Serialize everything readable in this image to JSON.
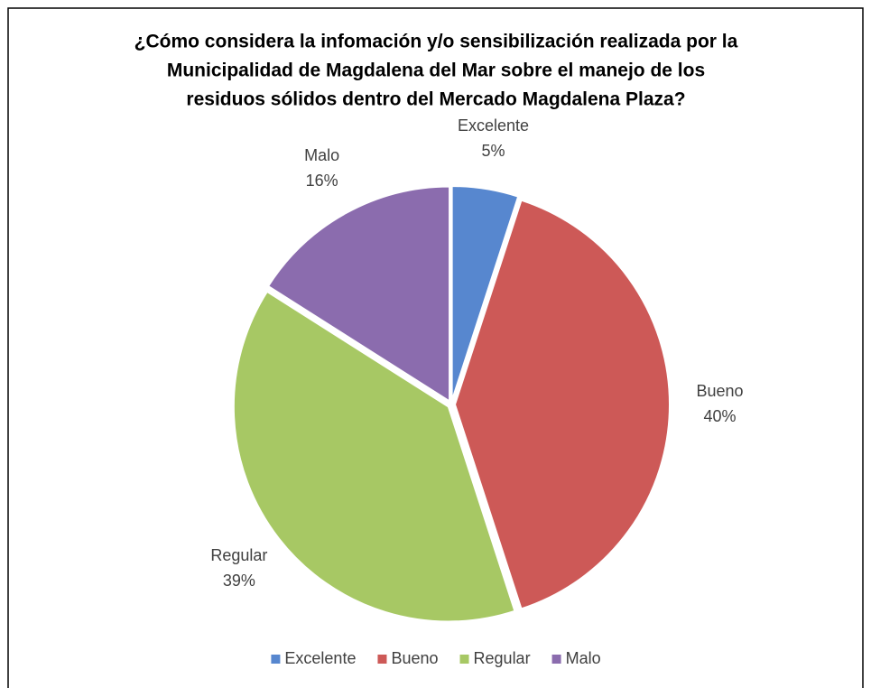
{
  "chart_data": {
    "type": "pie",
    "title": [
      "¿Cómo considera la infomación y/o sensibilización realizada por la",
      "Municipalidad de Magdalena del Mar sobre el manejo de los",
      "residuos sólidos dentro del Mercado Magdalena Plaza?"
    ],
    "categories": [
      "Excelente",
      "Bueno",
      "Regular",
      "Malo"
    ],
    "values": [
      5,
      40,
      39,
      16
    ],
    "value_labels": [
      "5%",
      "40%",
      "39%",
      "16%"
    ],
    "colors": [
      "#5787cf",
      "#cd5957",
      "#a7c864",
      "#8b6cae"
    ],
    "legend": "bottom"
  }
}
